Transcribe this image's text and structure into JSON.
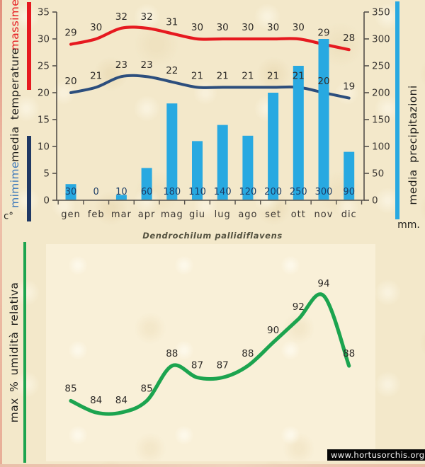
{
  "title": "Dendrochilum pallidiflavens",
  "watermark": "www.hortusorchis.org",
  "labels": {
    "massime": "massime",
    "media_temperature": "media temperature",
    "minime": "mimime",
    "celsius": "c°",
    "media_precipitazioni": "media precipitazioni",
    "mm": "mm.",
    "humidity": "max % umidità relativa"
  },
  "colors": {
    "red": "#e6191f",
    "navy": "#2c4e7d",
    "navy_legend": "#1f3864",
    "blue_text": "#3c78bb",
    "bar_blue": "#28a9e1",
    "green": "#1ca44f",
    "axis": "#55504a",
    "tick_text": "#3a3632",
    "data_label": "#2e2b28",
    "bar_label": "#1d3d66"
  },
  "chart_data": [
    {
      "type": "bar",
      "title": "Dendrochilum pallidiflavens",
      "categories": [
        "gen",
        "feb",
        "mar",
        "apr",
        "mag",
        "giu",
        "lug",
        "ago",
        "set",
        "ott",
        "nov",
        "dic"
      ],
      "series": [
        {
          "name": "massime",
          "kind": "line",
          "color": "#e6191f",
          "axis": "left",
          "values": [
            29,
            30,
            32,
            32,
            31,
            30,
            30,
            30,
            30,
            30,
            29,
            28
          ]
        },
        {
          "name": "mimime",
          "kind": "line",
          "color": "#2c4e7d",
          "axis": "left",
          "values": [
            20,
            21,
            23,
            23,
            22,
            21,
            21,
            21,
            21,
            21,
            20,
            19
          ]
        },
        {
          "name": "media precipitazioni",
          "kind": "bar",
          "color": "#28a9e1",
          "axis": "right",
          "values": [
            30,
            0,
            10,
            60,
            180,
            110,
            140,
            120,
            200,
            250,
            300,
            90
          ]
        }
      ],
      "left_axis": {
        "label": "c° media temperature",
        "ticks": [
          0,
          5,
          10,
          15,
          20,
          25,
          30,
          35
        ],
        "range": [
          0,
          35
        ]
      },
      "right_axis": {
        "label": "media precipitazioni (mm.)",
        "ticks": [
          0,
          50,
          100,
          150,
          200,
          250,
          300,
          350
        ],
        "range": [
          0,
          350
        ]
      },
      "grid": false,
      "legend_position": "side-bars-left-and-right"
    },
    {
      "type": "line",
      "title": "",
      "categories": [
        "gen",
        "feb",
        "mar",
        "apr",
        "mag",
        "giu",
        "lug",
        "ago",
        "set",
        "ott",
        "nov",
        "dic"
      ],
      "x_labels_visible": false,
      "series": [
        {
          "name": "max % umidità relativa",
          "color": "#1ca44f",
          "values": [
            85,
            84,
            84,
            85,
            88,
            87,
            87,
            88,
            90,
            92,
            94,
            88
          ]
        }
      ],
      "ylabel": "max % umidità relativa",
      "ylim": [
        82,
        96
      ],
      "grid": false,
      "legend_position": "none"
    }
  ]
}
